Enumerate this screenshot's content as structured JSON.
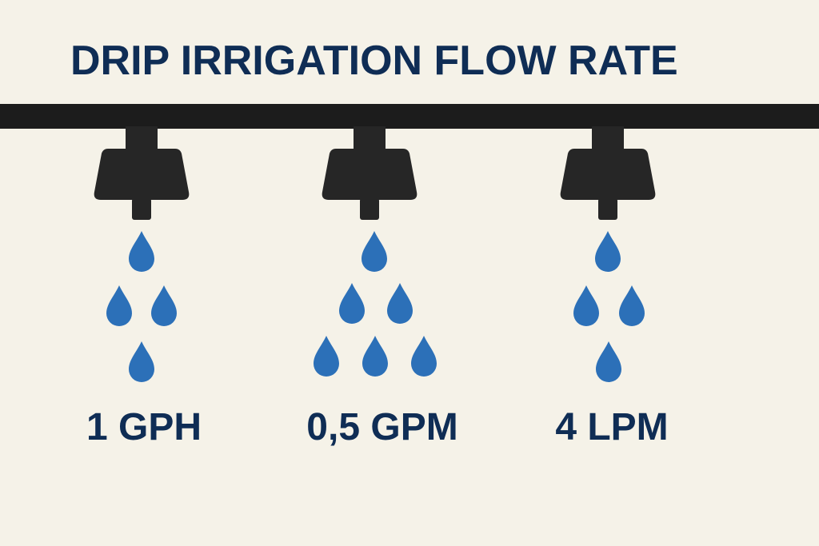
{
  "header": {
    "title": "DRIP IRRIGATION FLOW RATE"
  },
  "emitters": [
    {
      "label": "1 GPH"
    },
    {
      "label": "0,5 GPM"
    },
    {
      "label": "4 LPM"
    }
  ]
}
